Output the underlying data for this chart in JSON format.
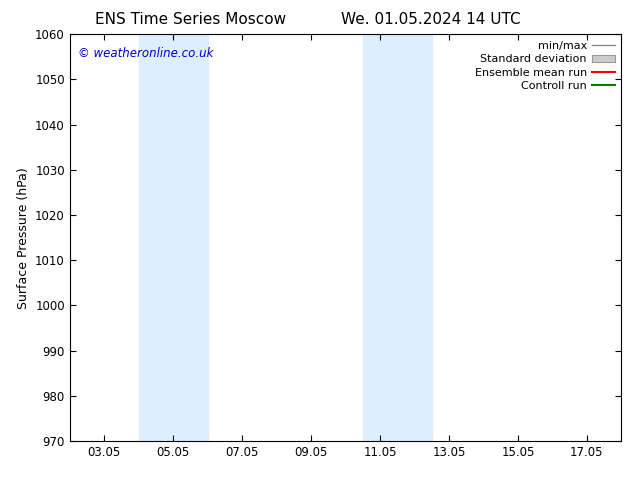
{
  "title_left": "ENS Time Series Moscow",
  "title_right": "We. 01.05.2024 14 UTC",
  "ylabel": "Surface Pressure (hPa)",
  "xlim": [
    2.0,
    18.0
  ],
  "ylim": [
    970,
    1060
  ],
  "yticks": [
    970,
    980,
    990,
    1000,
    1010,
    1020,
    1030,
    1040,
    1050,
    1060
  ],
  "xtick_labels": [
    "03.05",
    "05.05",
    "07.05",
    "09.05",
    "11.05",
    "13.05",
    "15.05",
    "17.05"
  ],
  "xtick_positions": [
    3,
    5,
    7,
    9,
    11,
    13,
    15,
    17
  ],
  "shaded_bands": [
    {
      "x_start": 4.0,
      "x_end": 6.0
    },
    {
      "x_start": 10.5,
      "x_end": 12.5
    }
  ],
  "shaded_color": "#ddeeff",
  "background_color": "#ffffff",
  "watermark_text": "© weatheronline.co.uk",
  "watermark_color": "#0000cc",
  "legend_entries": [
    {
      "label": "min/max",
      "color": "#999999",
      "style": "minmax"
    },
    {
      "label": "Standard deviation",
      "color": "#cccccc",
      "style": "stddev"
    },
    {
      "label": "Ensemble mean run",
      "color": "#ff0000",
      "style": "line"
    },
    {
      "label": "Controll run",
      "color": "#008000",
      "style": "line"
    }
  ],
  "title_fontsize": 11,
  "tick_fontsize": 8.5,
  "ylabel_fontsize": 9,
  "legend_fontsize": 8,
  "watermark_fontsize": 8.5
}
